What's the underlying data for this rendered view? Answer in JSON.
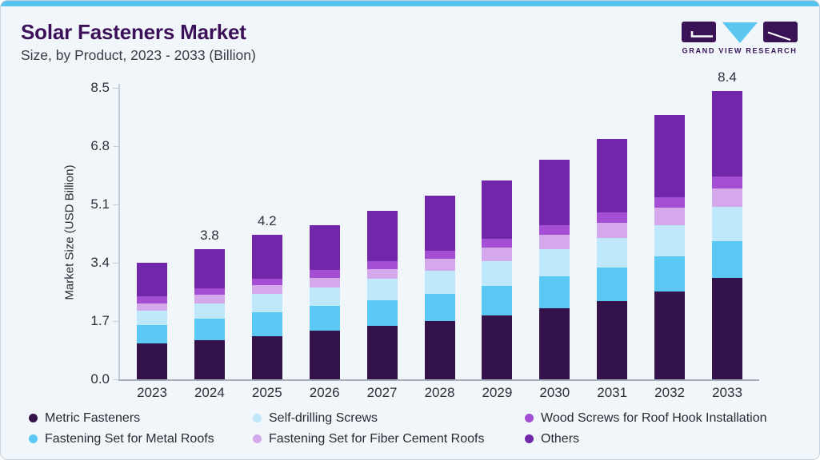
{
  "meta": {
    "brand": "GRAND VIEW RESEARCH"
  },
  "header": {
    "title": "Solar Fasteners Market",
    "subtitle": "Size, by Product, 2023 - 2033 (Billion)"
  },
  "colors": {
    "accent_top": "#58C3EE",
    "card_bg": "#F1F6FA",
    "card_border": "#C7D3DE",
    "title_text": "#3B1058",
    "logo_purple": "#3A1356",
    "logo_cyan": "#5BC6F0"
  },
  "chart_data": {
    "type": "bar",
    "stacked": true,
    "title": "Solar Fasteners Market",
    "subtitle": "Size, by Product, 2023 - 2033 (Billion)",
    "ylabel": "Market Size (USD Billion)",
    "xlabel": "",
    "ylim": [
      0,
      8.5
    ],
    "yticks": [
      0,
      1.7,
      3.4,
      5.1,
      6.8,
      8.5
    ],
    "grid": false,
    "legend_position": "bottom",
    "categories": [
      "2023",
      "2024",
      "2025",
      "2026",
      "2027",
      "2028",
      "2029",
      "2030",
      "2031",
      "2032",
      "2033"
    ],
    "bar_value_labels": {
      "2024": "3.8",
      "2025": "4.2",
      "2033": "8.4"
    },
    "series": [
      {
        "name": "Metric Fasteners",
        "color": "#331349",
        "values": [
          1.05,
          1.13,
          1.25,
          1.42,
          1.55,
          1.7,
          1.87,
          2.07,
          2.28,
          2.55,
          2.95
        ]
      },
      {
        "name": "Fastening Set for Metal Roofs",
        "color": "#5BC7F3",
        "values": [
          0.52,
          0.63,
          0.7,
          0.71,
          0.75,
          0.8,
          0.86,
          0.93,
          0.98,
          1.03,
          1.07
        ]
      },
      {
        "name": "Self-drilling Screws",
        "color": "#BFE8FA",
        "values": [
          0.43,
          0.46,
          0.54,
          0.55,
          0.62,
          0.66,
          0.72,
          0.79,
          0.85,
          0.92,
          1.01
        ]
      },
      {
        "name": "Fastening Set for Fiber Cement Roofs",
        "color": "#D4A8EB",
        "values": [
          0.22,
          0.24,
          0.25,
          0.28,
          0.3,
          0.36,
          0.39,
          0.42,
          0.45,
          0.49,
          0.53
        ]
      },
      {
        "name": "Wood Screws for Roof Hook Installation",
        "color": "#A44ED3",
        "values": [
          0.2,
          0.2,
          0.2,
          0.22,
          0.23,
          0.23,
          0.25,
          0.27,
          0.29,
          0.32,
          0.35
        ]
      },
      {
        "name": "Others",
        "color": "#7226A9",
        "values": [
          0.98,
          1.14,
          1.26,
          1.32,
          1.45,
          1.6,
          1.71,
          1.92,
          2.15,
          2.39,
          2.49
        ]
      }
    ],
    "legend_order": [
      0,
      2,
      4,
      1,
      3,
      5
    ],
    "totals": [
      3.4,
      3.8,
      4.2,
      4.5,
      4.9,
      5.35,
      5.8,
      6.4,
      7.0,
      7.7,
      8.4
    ]
  }
}
